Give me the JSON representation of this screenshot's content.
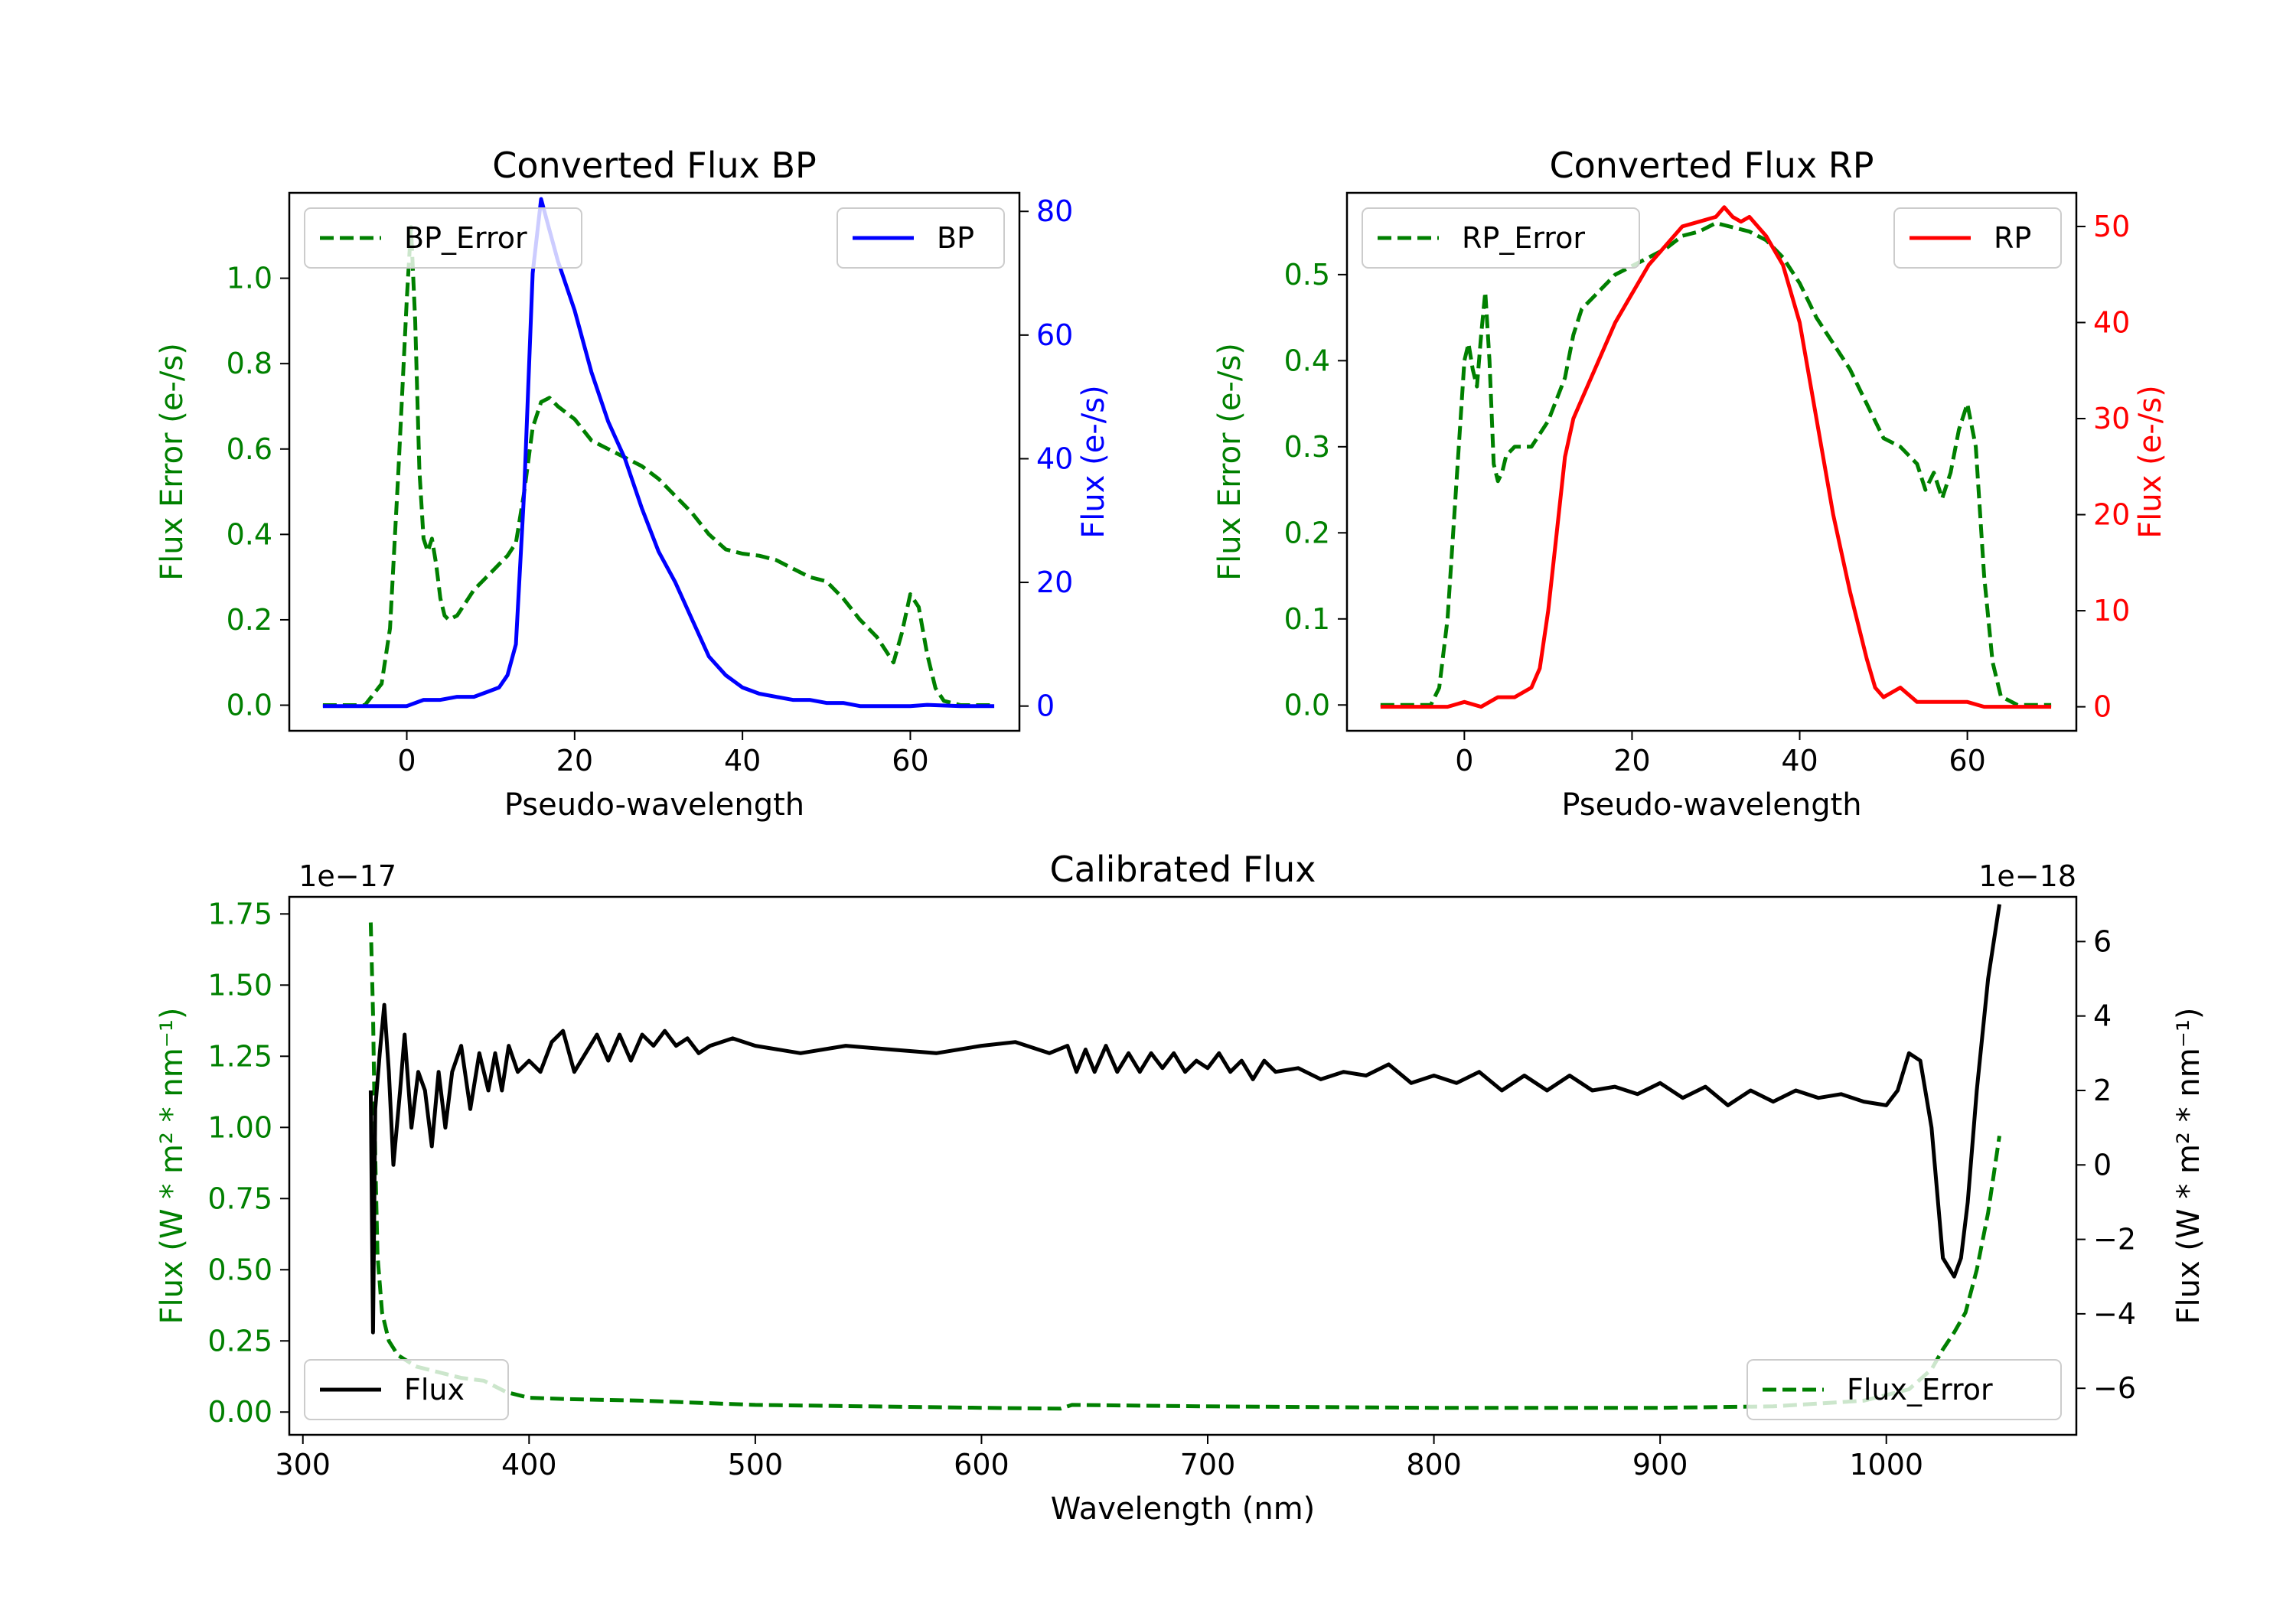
{
  "chart_data": [
    {
      "id": "bp",
      "type": "line",
      "title": "Converted Flux BP",
      "xlabel": "Pseudo-wavelength",
      "xlim": [
        -14,
        73
      ],
      "xticks": [
        0,
        20,
        40,
        60
      ],
      "left_axis": {
        "label": "Flux Error (e-/s)",
        "color": "#008000",
        "ylim": [
          -0.06,
          1.2
        ],
        "ticks": [
          0.0,
          0.2,
          0.4,
          0.6,
          0.8,
          1.0
        ],
        "tick_labels": [
          "0.0",
          "0.2",
          "0.4",
          "0.6",
          "0.8",
          "1.0"
        ]
      },
      "right_axis": {
        "label": "Flux (e-/s)",
        "color": "#0000ff",
        "ylim": [
          -4,
          83
        ],
        "ticks": [
          0,
          20,
          40,
          60,
          80
        ],
        "tick_labels": [
          "0",
          "20",
          "40",
          "60",
          "80"
        ]
      },
      "series": [
        {
          "name": "BP_Error",
          "axis": "left",
          "color": "#008000",
          "style": "dashed",
          "x": [
            -10,
            -5,
            -3,
            -2,
            -1,
            0,
            0.5,
            1,
            1.5,
            2,
            2.5,
            3,
            3.5,
            4,
            4.5,
            5,
            6,
            7,
            8,
            9,
            10,
            11,
            12,
            13,
            14,
            15,
            16,
            17,
            18,
            20,
            22,
            24,
            26,
            28,
            30,
            32,
            34,
            36,
            38,
            40,
            42,
            44,
            46,
            48,
            50,
            52,
            54,
            56,
            57,
            58,
            59,
            60,
            61,
            62,
            63,
            64,
            66,
            68,
            70
          ],
          "values": [
            0,
            0,
            0.05,
            0.18,
            0.55,
            0.95,
            1.12,
            0.9,
            0.55,
            0.39,
            0.36,
            0.39,
            0.33,
            0.25,
            0.21,
            0.2,
            0.21,
            0.24,
            0.27,
            0.29,
            0.31,
            0.33,
            0.35,
            0.38,
            0.5,
            0.65,
            0.71,
            0.72,
            0.7,
            0.67,
            0.62,
            0.6,
            0.58,
            0.56,
            0.53,
            0.49,
            0.45,
            0.4,
            0.365,
            0.355,
            0.35,
            0.34,
            0.32,
            0.3,
            0.29,
            0.25,
            0.2,
            0.16,
            0.13,
            0.1,
            0.17,
            0.26,
            0.23,
            0.12,
            0.04,
            0.01,
            0,
            0,
            0
          ]
        },
        {
          "name": "BP",
          "axis": "right",
          "color": "#0000ff",
          "style": "solid",
          "x": [
            -10,
            -4,
            0,
            2,
            4,
            6,
            8,
            10,
            11,
            12,
            13,
            14,
            15,
            16,
            17,
            18,
            20,
            22,
            24,
            26,
            28,
            30,
            32,
            34,
            36,
            38,
            40,
            42,
            44,
            46,
            48,
            50,
            52,
            54,
            56,
            58,
            60,
            62,
            66,
            70
          ],
          "values": [
            0,
            0,
            0,
            1,
            1,
            1.5,
            1.5,
            2.5,
            3,
            5,
            10,
            35,
            70,
            82,
            77,
            72,
            64,
            54,
            46,
            40,
            32,
            25,
            20,
            14,
            8,
            5,
            3,
            2,
            1.5,
            1,
            1,
            0.5,
            0.5,
            0,
            0,
            0,
            0,
            0.2,
            0,
            0
          ]
        }
      ],
      "legend_left": {
        "entries": [
          "BP_Error"
        ],
        "location": "upper left"
      },
      "legend_right": {
        "entries": [
          "BP"
        ],
        "location": "upper right"
      }
    },
    {
      "id": "rp",
      "type": "line",
      "title": "Converted Flux RP",
      "xlabel": "Pseudo-wavelength",
      "xlim": [
        -14,
        73
      ],
      "xticks": [
        0,
        20,
        40,
        60
      ],
      "left_axis": {
        "label": "Flux Error (e-/s)",
        "color": "#008000",
        "ylim": [
          -0.03,
          0.595
        ],
        "ticks": [
          0.0,
          0.1,
          0.2,
          0.3,
          0.4,
          0.5
        ],
        "tick_labels": [
          "0.0",
          "0.1",
          "0.2",
          "0.3",
          "0.4",
          "0.5"
        ]
      },
      "right_axis": {
        "label": "Flux (e-/s)",
        "color": "#ff0000",
        "ylim": [
          -2.5,
          53.5
        ],
        "ticks": [
          0,
          10,
          20,
          30,
          40,
          50
        ],
        "tick_labels": [
          "0",
          "10",
          "20",
          "30",
          "40",
          "50"
        ]
      },
      "series": [
        {
          "name": "RP_Error",
          "axis": "left",
          "color": "#008000",
          "style": "dashed",
          "x": [
            -10,
            -4,
            -3,
            -2,
            -1,
            0,
            0.5,
            1,
            1.5,
            2,
            2.5,
            3,
            3.5,
            4,
            4.5,
            5,
            6,
            8,
            10,
            12,
            13,
            14,
            16,
            18,
            20,
            22,
            24,
            26,
            28,
            30,
            32,
            34,
            36,
            38,
            40,
            42,
            44,
            46,
            48,
            50,
            52,
            54,
            55,
            56,
            57,
            58,
            59,
            60,
            61,
            62,
            63,
            64,
            66,
            70
          ],
          "values": [
            0,
            0,
            0.02,
            0.1,
            0.25,
            0.4,
            0.42,
            0.39,
            0.37,
            0.43,
            0.48,
            0.4,
            0.28,
            0.26,
            0.27,
            0.29,
            0.3,
            0.3,
            0.33,
            0.38,
            0.43,
            0.46,
            0.48,
            0.5,
            0.51,
            0.52,
            0.53,
            0.545,
            0.55,
            0.56,
            0.555,
            0.55,
            0.54,
            0.52,
            0.49,
            0.45,
            0.42,
            0.39,
            0.35,
            0.31,
            0.3,
            0.28,
            0.25,
            0.27,
            0.24,
            0.27,
            0.32,
            0.35,
            0.3,
            0.15,
            0.05,
            0.01,
            0,
            0
          ]
        },
        {
          "name": "RP",
          "axis": "right",
          "color": "#ff0000",
          "style": "solid",
          "x": [
            -10,
            -2,
            0,
            2,
            4,
            6,
            8,
            9,
            10,
            11,
            12,
            13,
            14,
            16,
            18,
            20,
            22,
            24,
            26,
            28,
            30,
            31,
            32,
            33,
            34,
            35,
            36,
            38,
            40,
            42,
            44,
            46,
            48,
            49,
            50,
            52,
            54,
            56,
            58,
            60,
            62,
            64,
            66,
            70
          ],
          "values": [
            0,
            0,
            0.5,
            0,
            1,
            1,
            2,
            4,
            10,
            18,
            26,
            30,
            32,
            36,
            40,
            43,
            46,
            48,
            50,
            50.5,
            51,
            52,
            51,
            50.5,
            51,
            50,
            49,
            46,
            40,
            30,
            20,
            12,
            5,
            2,
            1,
            2,
            0.5,
            0.5,
            0.5,
            0.5,
            0,
            0,
            0,
            0
          ]
        }
      ],
      "legend_left": {
        "entries": [
          "RP_Error"
        ],
        "location": "upper left"
      },
      "legend_right": {
        "entries": [
          "RP"
        ],
        "location": "upper right"
      }
    },
    {
      "id": "cal",
      "type": "line",
      "title": "Calibrated Flux",
      "xlabel": "Wavelength (nm)",
      "xlim": [
        294,
        1084
      ],
      "xticks": [
        300,
        400,
        500,
        600,
        700,
        800,
        900,
        1000
      ],
      "left_axis": {
        "label": "Flux (W * m² * nm⁻¹)",
        "color": "#008000",
        "offset_text": "1e−17",
        "ylim": [
          -0.08,
          1.81
        ],
        "ticks": [
          0.0,
          0.25,
          0.5,
          0.75,
          1.0,
          1.25,
          1.5,
          1.75
        ],
        "tick_labels": [
          "0.00",
          "0.25",
          "0.50",
          "0.75",
          "1.00",
          "1.25",
          "1.50",
          "1.75"
        ]
      },
      "right_axis": {
        "label": "Flux (W * m² * nm⁻¹)",
        "color": "#000000",
        "offset_text": "1e−18",
        "ylim": [
          -7.25,
          7.2
        ],
        "ticks": [
          -6,
          -4,
          -2,
          0,
          2,
          4,
          6
        ],
        "tick_labels": [
          "−6",
          "−4",
          "−2",
          "0",
          "2",
          "4",
          "6"
        ]
      },
      "series": [
        {
          "name": "Flux_Error",
          "axis": "left",
          "color": "#008000",
          "style": "dashed",
          "x": [
            330,
            331,
            332,
            333,
            335,
            338,
            342,
            350,
            360,
            370,
            380,
            390,
            400,
            420,
            450,
            500,
            550,
            600,
            635,
            640,
            700,
            800,
            900,
            950,
            990,
            1010,
            1020,
            1025,
            1030,
            1035,
            1040,
            1045,
            1050
          ],
          "values": [
            1.72,
            1.4,
            0.9,
            0.55,
            0.35,
            0.25,
            0.2,
            0.16,
            0.14,
            0.12,
            0.11,
            0.07,
            0.05,
            0.045,
            0.04,
            0.025,
            0.02,
            0.015,
            0.012,
            0.025,
            0.02,
            0.015,
            0.015,
            0.02,
            0.04,
            0.08,
            0.15,
            0.22,
            0.28,
            0.35,
            0.5,
            0.7,
            0.97
          ]
        },
        {
          "name": "Flux",
          "axis": "right",
          "color": "#000000",
          "style": "solid",
          "x": [
            330,
            331,
            332,
            334,
            336,
            338,
            340,
            343,
            345,
            348,
            351,
            354,
            357,
            360,
            363,
            366,
            370,
            374,
            378,
            382,
            385,
            388,
            391,
            395,
            400,
            405,
            410,
            415,
            420,
            425,
            430,
            435,
            440,
            445,
            450,
            455,
            460,
            465,
            470,
            475,
            480,
            490,
            500,
            520,
            540,
            560,
            580,
            600,
            615,
            630,
            638,
            642,
            646,
            650,
            655,
            660,
            665,
            670,
            675,
            680,
            685,
            690,
            695,
            700,
            705,
            710,
            715,
            720,
            725,
            730,
            740,
            750,
            760,
            770,
            780,
            790,
            800,
            810,
            820,
            830,
            840,
            850,
            860,
            870,
            880,
            890,
            900,
            910,
            920,
            930,
            940,
            950,
            960,
            970,
            980,
            990,
            1000,
            1005,
            1010,
            1015,
            1020,
            1025,
            1030,
            1033,
            1036,
            1040,
            1045,
            1050
          ],
          "values": [
            2.0,
            -4.5,
            1.5,
            3.0,
            4.3,
            2.5,
            0.0,
            2.0,
            3.5,
            1.0,
            2.5,
            2.0,
            0.5,
            2.5,
            1.0,
            2.5,
            3.2,
            1.5,
            3.0,
            2.0,
            3.0,
            2.0,
            3.2,
            2.5,
            2.8,
            2.5,
            3.3,
            3.6,
            2.5,
            3.0,
            3.5,
            2.8,
            3.5,
            2.8,
            3.5,
            3.2,
            3.6,
            3.2,
            3.4,
            3.0,
            3.2,
            3.4,
            3.2,
            3.0,
            3.2,
            3.1,
            3.0,
            3.2,
            3.3,
            3.0,
            3.2,
            2.5,
            3.1,
            2.5,
            3.2,
            2.5,
            3.0,
            2.5,
            3.0,
            2.6,
            3.0,
            2.5,
            2.8,
            2.6,
            3.0,
            2.5,
            2.8,
            2.3,
            2.8,
            2.5,
            2.6,
            2.3,
            2.5,
            2.4,
            2.7,
            2.2,
            2.4,
            2.2,
            2.5,
            2.0,
            2.4,
            2.0,
            2.4,
            2.0,
            2.1,
            1.9,
            2.2,
            1.8,
            2.1,
            1.6,
            2.0,
            1.7,
            2.0,
            1.8,
            1.9,
            1.7,
            1.6,
            2.0,
            3.0,
            2.8,
            1.0,
            -2.5,
            -3.0,
            -2.5,
            -1.0,
            2.0,
            5.0,
            7.0
          ]
        }
      ],
      "legend_left": {
        "entries": [
          "Flux"
        ],
        "location": "lower left"
      },
      "legend_right": {
        "entries": [
          "Flux_Error"
        ],
        "location": "lower right"
      }
    }
  ]
}
